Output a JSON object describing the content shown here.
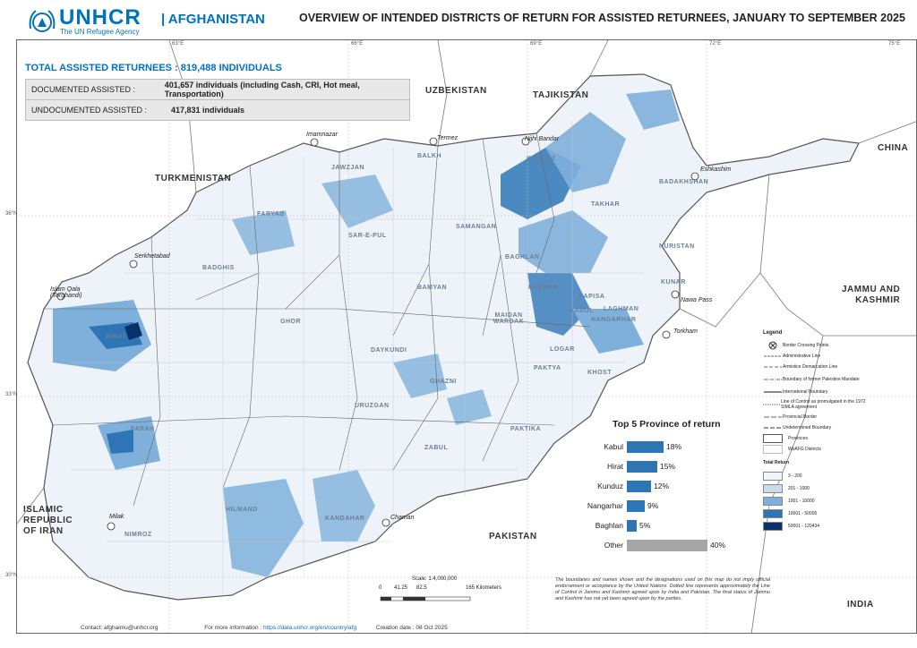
{
  "header": {
    "brand": "UNHCR",
    "brand_sub": "The UN Refugee Agency",
    "country": "| AFGHANISTAN",
    "title": "OVERVIEW OF INTENDED DISTRICTS OF RETURN FOR ASSISTED RETURNEES, JANUARY TO SEPTEMBER 2025"
  },
  "stats": {
    "total": "TOTAL ASSISTED RETURNEES : 819,488 INDIVIDUALS",
    "rows": [
      {
        "label": "DOCUMENTED ASSISTED :",
        "value": "401,657 individuals (including Cash, CRI, Hot meal, Transportation)"
      },
      {
        "label": "UNDOCUMENTED ASSISTED :",
        "value": "417,831 individuals"
      }
    ]
  },
  "countries": {
    "uzbekistan": "UZBEKISTAN",
    "tajikistan": "TAJIKISTAN",
    "china": "CHINA",
    "turkmenistan": "TURKMENISTAN",
    "india_region": "INDIA",
    "iran": "ISLAMIC\nREPUBLIC\nOF IRAN",
    "pakistan": "PAKISTAN",
    "jk": "JAMMU AND\nKASHMIR"
  },
  "provinces": [
    "JAWZJAN",
    "BALKH",
    "KUNDUZ",
    "TAKHAR",
    "BADAKHSHAN",
    "FARYAB",
    "SAR-E-PUL",
    "SAMANGAN",
    "BAGHLAN",
    "BADGHIS",
    "NURISTAN",
    "KUNAR",
    "BAMYAN",
    "PARWAN",
    "KAPISA",
    "KABUL",
    "MAIDAN WARDAK",
    "LAGHMAN",
    "NANGARHAR",
    "LOGAR",
    "PAKTYA",
    "KHOST",
    "HIRAT",
    "GHOR",
    "DAYKUNDI",
    "GHAZNI",
    "URUZGAN",
    "PAKTIKA",
    "FARAH",
    "ZABUL",
    "HILMAND",
    "KANDAHAR",
    "NIMROZ"
  ],
  "crossings": [
    "Imamnazar",
    "Termez",
    "Nijhi Bandar",
    "Eshkashim",
    "Serkhetabad",
    "Islam Qala (Torghandi)",
    "Nawa Pass",
    "Torkham",
    "Milak",
    "Chaman"
  ],
  "graticule": {
    "top": [
      "63°E",
      "66°E",
      "69°E",
      "72°E",
      "75°E"
    ],
    "left": [
      "36°N",
      "33°N",
      "30°N"
    ]
  },
  "top5": {
    "title": "Top 5 Province of return",
    "items": [
      {
        "name": "Kabul",
        "value": 18,
        "label": "18%"
      },
      {
        "name": "Hirat",
        "value": 15,
        "label": "15%"
      },
      {
        "name": "Kunduz",
        "value": 12,
        "label": "12%"
      },
      {
        "name": "Nangarhar",
        "value": 9,
        "label": "9%"
      },
      {
        "name": "Baghlan",
        "value": 5,
        "label": "5%"
      },
      {
        "name": "Other",
        "value": 40,
        "label": "40%"
      }
    ]
  },
  "legend": {
    "title": "Legend",
    "items": [
      "Border Crossing Points",
      "Administrative Line",
      "Armistice Demarcation Line",
      "Boundary of former Palestine Mandate",
      "International Boundary",
      "Line of Control as promulgated in the 1972 SIMLA agreement",
      "Provincial Border",
      "Undetermined Boundary",
      "Provinces",
      "WoAFG Districts"
    ],
    "total_title": "Total Return",
    "classes": [
      {
        "label": "3 - 200",
        "color": "#f2f6fb"
      },
      {
        "label": "201 - 1000",
        "color": "#c9dcee"
      },
      {
        "label": "1001 - 10000",
        "color": "#7fb0db"
      },
      {
        "label": "10001 - 50000",
        "color": "#2e75b6"
      },
      {
        "label": "50001 - 120434",
        "color": "#08306b"
      }
    ]
  },
  "scale": {
    "ratio": "Scale: 1:4,000,000",
    "ticks": [
      "0",
      "41.25",
      "82.5",
      "165 Kilometers"
    ]
  },
  "disclaimer": "The boundaries and names shown and the designations used on this map do not imply official endorsement or acceptance by the United Nations. Dotted line represents approximately the Line of Control in Jammu and Kashmir agreed upon by India and Pakistan. The final status of Jammu and Kashmir has not yet been agreed upon by the parties.",
  "footer": {
    "contact": "Contact: afghaimu@unhcr.org",
    "info_label": "For more information :",
    "info_link": "https://data.unhcr.org/en/country/afg",
    "creation": "Creation date :  08 Oct 2025"
  }
}
